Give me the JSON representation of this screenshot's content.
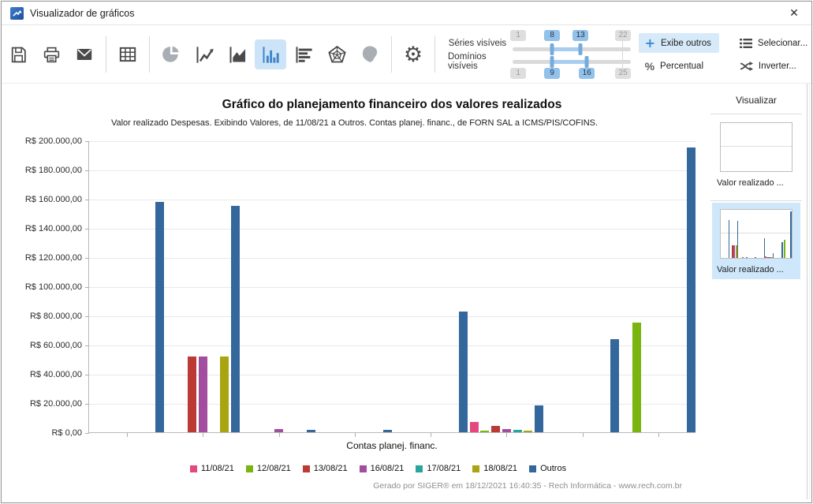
{
  "window": {
    "title": "Visualizador de gráficos",
    "close_glyph": "✕"
  },
  "toolbar": {
    "icon_names": [
      "save",
      "print",
      "email",
      "table",
      "pie-chart",
      "line-chart",
      "area-chart",
      "bar-chart",
      "horizontal-bar-chart",
      "radar-chart",
      "brazil-map",
      "settings"
    ],
    "selected_chart_type": "bar-chart",
    "disabled_icons": [
      "pie-chart",
      "brazil-map"
    ],
    "settings_glyph": "⚙",
    "sliders": {
      "series": {
        "label": "Séries visíveis",
        "min": "1",
        "low": "8",
        "high": "13",
        "max": "22"
      },
      "domains": {
        "label": "Domínios visíveis",
        "min": "1",
        "low": "9",
        "high": "16",
        "max": "25"
      }
    },
    "buttons": {
      "exibe_outros": "Exibe outros",
      "exibe_outros_glyph": "+",
      "percentual": "Percentual",
      "percentual_glyph": "%",
      "selecionar": "Selecionar...",
      "inverter": "Inverter..."
    }
  },
  "sidebar": {
    "title": "Visualizar",
    "items": [
      {
        "label": "Valor realizado ...",
        "selected": false
      },
      {
        "label": "Valor realizado ...",
        "selected": true
      }
    ]
  },
  "chart_data": {
    "type": "bar",
    "title": "Gráfico do planejamento financeiro dos valores realizados",
    "subtitle": "Valor realizado Despesas. Exibindo Valores, de 11/08/21 a Outros. Contas planej. financ., de FORN SAL a ICMS/PIS/COFINS.",
    "xlabel": "Contas planej. financ.",
    "ylabel": "R$",
    "ylim": [
      0,
      200000
    ],
    "ytick_step": 20000,
    "ytick_labels": [
      "R$ 0,00",
      "R$ 20.000,00",
      "R$ 40.000,00",
      "R$ 60.000,00",
      "R$ 80.000,00",
      "R$ 100.000,00",
      "R$ 120.000,00",
      "R$ 140.000,00",
      "R$ 160.000,00",
      "R$ 180.000,00",
      "R$ 200.000,00"
    ],
    "num_categories": 8,
    "categories_labeled": false,
    "grid": true,
    "legend_position": "bottom",
    "series": [
      {
        "name": "11/08/21",
        "color": "#e2497f",
        "values": [
          0,
          0,
          0,
          0,
          0,
          7000,
          0,
          0
        ]
      },
      {
        "name": "12/08/21",
        "color": "#7ab40e",
        "values": [
          0,
          0,
          0,
          0,
          0,
          1000,
          0,
          75000
        ]
      },
      {
        "name": "13/08/21",
        "color": "#bb3a33",
        "values": [
          0,
          52000,
          0,
          0,
          0,
          4500,
          0,
          0
        ]
      },
      {
        "name": "16/08/21",
        "color": "#a34d9e",
        "values": [
          0,
          52000,
          2000,
          0,
          0,
          2000,
          0,
          0
        ]
      },
      {
        "name": "17/08/21",
        "color": "#27a699",
        "values": [
          0,
          0,
          0,
          0,
          0,
          1800,
          0,
          0
        ]
      },
      {
        "name": "18/08/21",
        "color": "#a9a411",
        "values": [
          0,
          52000,
          0,
          0,
          0,
          1000,
          0,
          0
        ]
      },
      {
        "name": "Outros",
        "color": "#34689d",
        "values": [
          158000,
          155000,
          1500,
          1500,
          82500,
          18500,
          64000,
          195000
        ]
      }
    ]
  },
  "footer": "Gerado por SIGER® em 18/12/2021 16:40:35 - Rech Informática - www.rech.com.br"
}
